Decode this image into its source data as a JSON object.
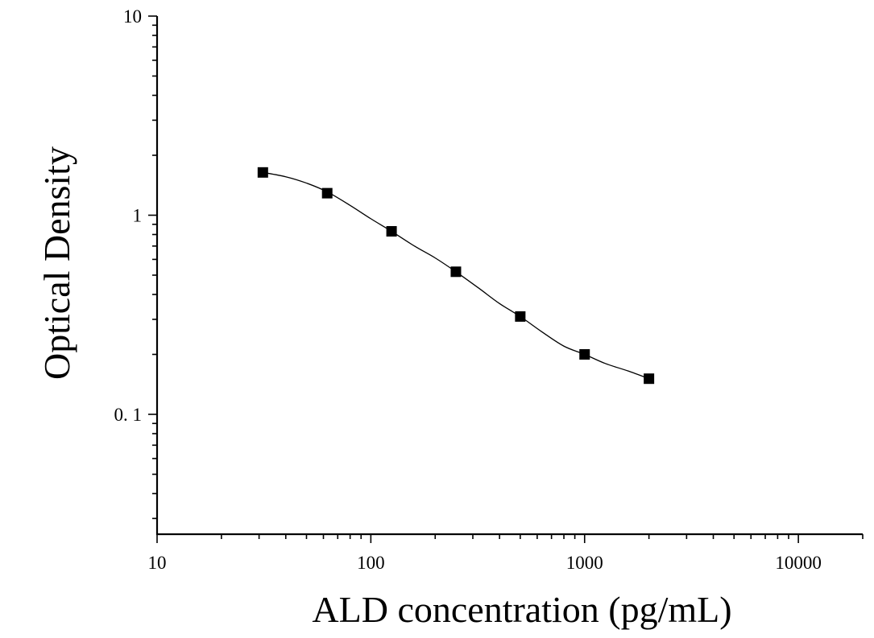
{
  "chart_data": {
    "type": "scatter",
    "title": "",
    "xlabel": "ALD concentration (pg/mL)",
    "ylabel": "Optical Density",
    "x_scale": "log",
    "y_scale": "log",
    "xlim": [
      10,
      20000
    ],
    "ylim": [
      0.025,
      10
    ],
    "x_ticks": [
      {
        "value": 10,
        "label": "10"
      },
      {
        "value": 100,
        "label": "100"
      },
      {
        "value": 1000,
        "label": "1000"
      },
      {
        "value": 10000,
        "label": "10000"
      }
    ],
    "y_ticks": [
      {
        "value": 10,
        "label": "10"
      },
      {
        "value": 1,
        "label": "1"
      },
      {
        "value": 0.1,
        "label": "0. 1"
      }
    ],
    "grid": false,
    "legend": "none",
    "series": [
      {
        "marker": "square",
        "x": [
          31.25,
          62.5,
          125,
          250,
          500,
          1000,
          2000
        ],
        "y": [
          1.64,
          1.29,
          0.83,
          0.52,
          0.31,
          0.2,
          0.151
        ]
      }
    ],
    "fit_curve": {
      "type": "4PL",
      "x": [
        31.25,
        40,
        50,
        62.5,
        80,
        100,
        125,
        160,
        200,
        250,
        320,
        400,
        500,
        630,
        800,
        1000,
        1250,
        1600,
        2000
      ],
      "y": [
        1.64,
        1.56,
        1.45,
        1.31,
        1.12,
        0.96,
        0.83,
        0.7,
        0.61,
        0.52,
        0.43,
        0.36,
        0.31,
        0.26,
        0.22,
        0.2,
        0.18,
        0.165,
        0.151
      ]
    },
    "colors": {
      "axis": "#000000",
      "marker": "#000000",
      "curve": "#000000"
    }
  }
}
